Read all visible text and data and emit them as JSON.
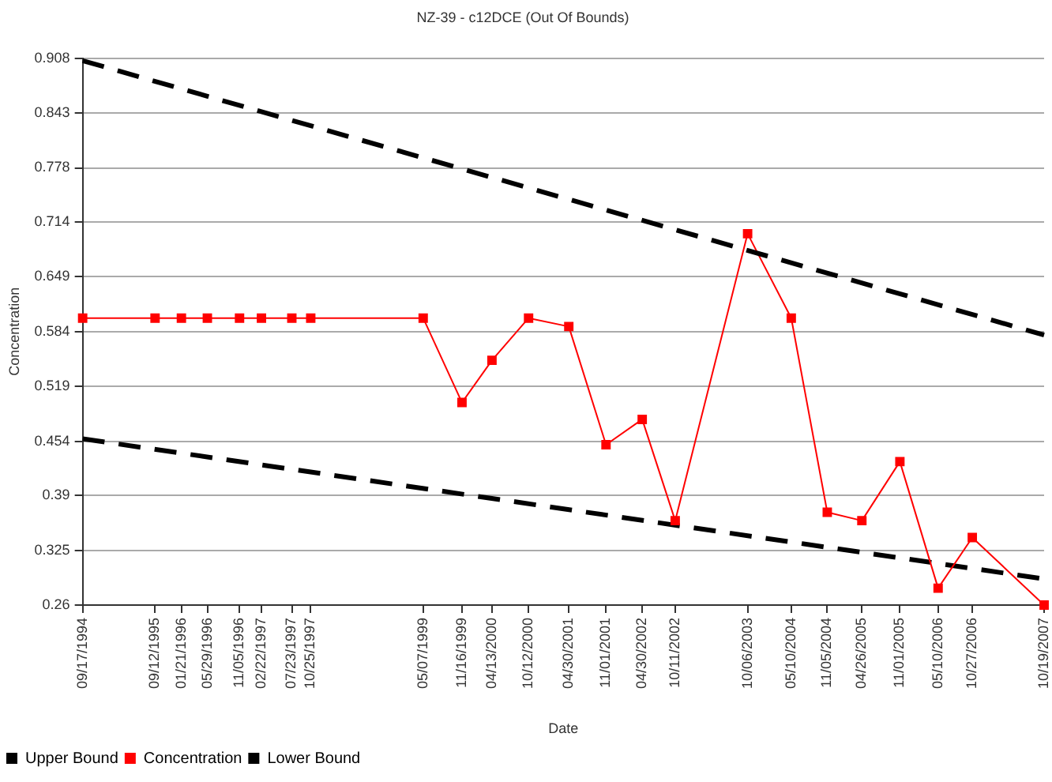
{
  "chart_data": {
    "type": "line",
    "title": "NZ-39 - c12DCE (Out Of Bounds)",
    "xlabel": "Date",
    "ylabel": "Concentration",
    "x": [
      "1994-09-17",
      "1995-09-12",
      "1996-01-21",
      "1996-05-29",
      "1996-11-05",
      "1997-02-22",
      "1997-07-23",
      "1997-10-25",
      "1999-05-07",
      "1999-11-16",
      "2000-04-13",
      "2000-10-12",
      "2001-04-30",
      "2001-11-01",
      "2002-04-30",
      "2002-10-11",
      "2003-10-06",
      "2004-05-10",
      "2004-11-05",
      "2005-04-26",
      "2005-11-01",
      "2006-05-10",
      "2006-10-27",
      "2007-10-19"
    ],
    "series": [
      {
        "name": "Upper Bound",
        "color": "#000000",
        "x": [
          "1994-09-17",
          "2007-10-19"
        ],
        "values": [
          0.905,
          0.58
        ],
        "line_style": "dashed",
        "marker": "none"
      },
      {
        "name": "Concentration",
        "color": "#ff0000",
        "values": [
          0.6,
          0.6,
          0.6,
          0.6,
          0.6,
          0.6,
          0.6,
          0.6,
          0.6,
          0.5,
          0.55,
          0.6,
          0.59,
          0.45,
          0.48,
          0.36,
          0.7,
          0.6,
          0.37,
          0.36,
          0.43,
          0.28,
          0.34,
          0.26
        ],
        "line_style": "solid",
        "marker": "square"
      },
      {
        "name": "Lower Bound",
        "color": "#000000",
        "x": [
          "1994-09-17",
          "2007-10-19"
        ],
        "values": [
          0.457,
          0.291
        ],
        "line_style": "dashed",
        "marker": "none"
      }
    ],
    "xlim": [
      "1994-09-17",
      "2007-10-19"
    ],
    "xticks": [
      {
        "value": "1994-09-17",
        "label": "09/17/1994"
      },
      {
        "value": "1995-09-12",
        "label": "09/12/1995"
      },
      {
        "value": "1996-01-21",
        "label": "01/21/1996"
      },
      {
        "value": "1996-05-29",
        "label": "05/29/1996"
      },
      {
        "value": "1996-11-05",
        "label": "11/05/1996"
      },
      {
        "value": "1997-02-22",
        "label": "02/22/1997"
      },
      {
        "value": "1997-07-23",
        "label": "07/23/1997"
      },
      {
        "value": "1997-10-25",
        "label": "10/25/1997"
      },
      {
        "value": "1999-05-07",
        "label": "05/07/1999"
      },
      {
        "value": "1999-11-16",
        "label": "11/16/1999"
      },
      {
        "value": "2000-04-13",
        "label": "04/13/2000"
      },
      {
        "value": "2000-10-12",
        "label": "10/12/2000"
      },
      {
        "value": "2001-04-30",
        "label": "04/30/2001"
      },
      {
        "value": "2001-11-01",
        "label": "11/01/2001"
      },
      {
        "value": "2002-04-30",
        "label": "04/30/2002"
      },
      {
        "value": "2002-10-11",
        "label": "10/11/2002"
      },
      {
        "value": "2003-10-06",
        "label": "10/06/2003"
      },
      {
        "value": "2004-05-10",
        "label": "05/10/2004"
      },
      {
        "value": "2004-11-05",
        "label": "11/05/2004"
      },
      {
        "value": "2005-04-26",
        "label": "04/26/2005"
      },
      {
        "value": "2005-11-01",
        "label": "11/01/2005"
      },
      {
        "value": "2006-05-10",
        "label": "05/10/2006"
      },
      {
        "value": "2006-10-27",
        "label": "10/27/2006"
      },
      {
        "value": "2007-10-19",
        "label": "10/19/2007"
      }
    ],
    "ylim": [
      0.26,
      0.908
    ],
    "yticks": [
      0.26,
      0.325,
      0.39,
      0.454,
      0.519,
      0.584,
      0.649,
      0.714,
      0.778,
      0.843,
      0.908
    ],
    "grid": "y",
    "legend": "bottom left"
  }
}
